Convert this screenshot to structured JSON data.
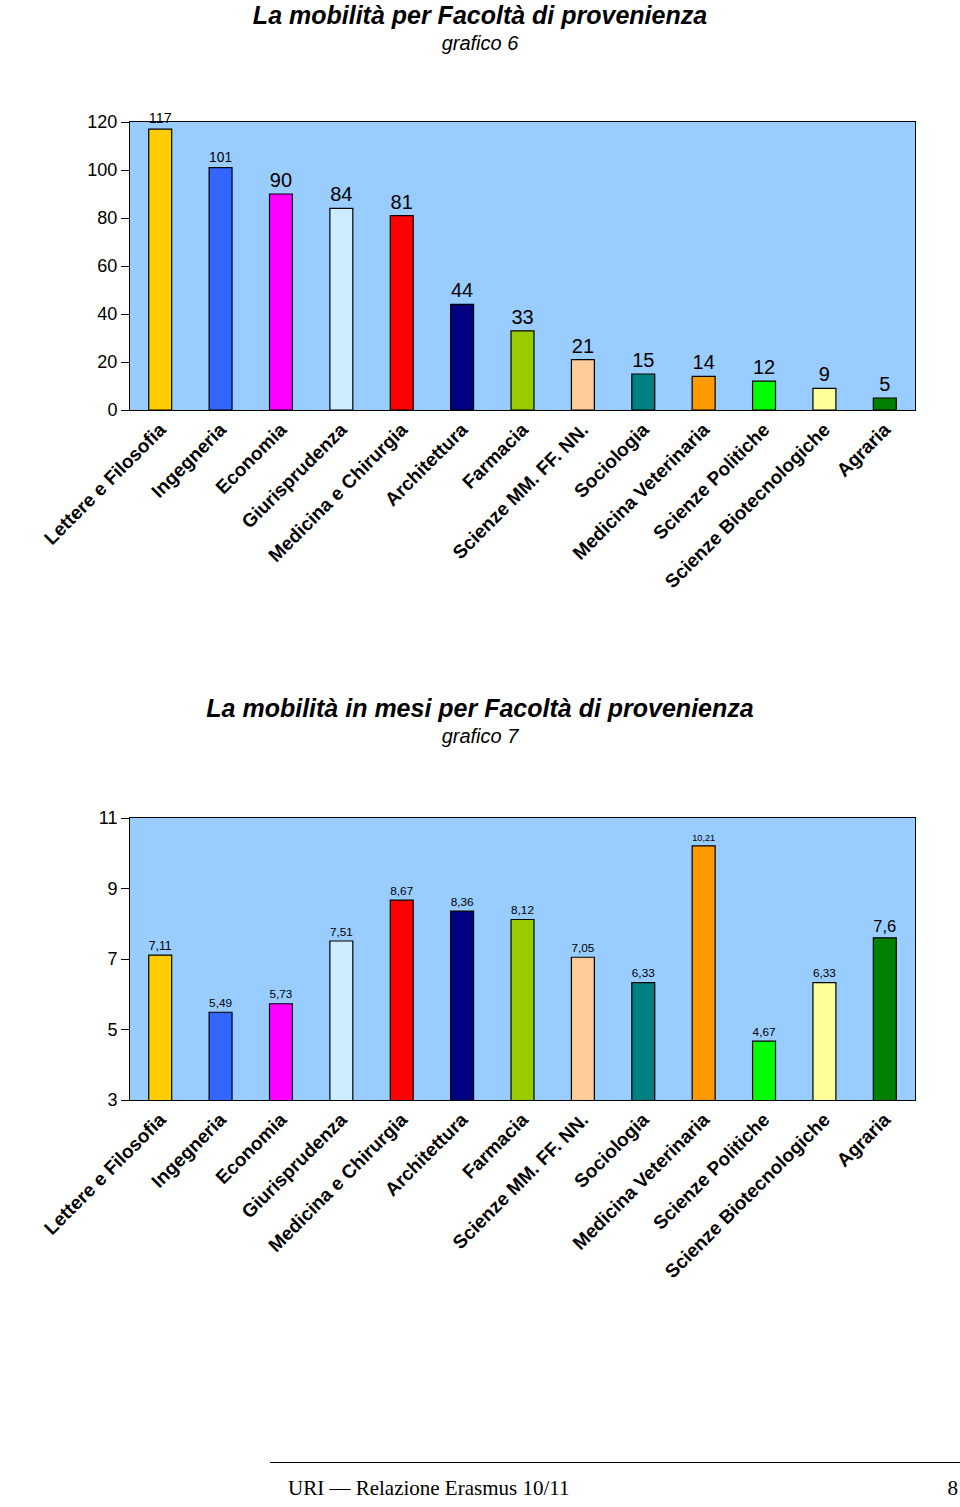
{
  "chart_data": [
    {
      "type": "bar",
      "title": "La mobilità per Facoltà di provenienza",
      "subtitle": "grafico 6",
      "categories": [
        "Lettere e Filosofia",
        "Ingegneria",
        "Economia",
        "Giurisprudenza",
        "Medicina e Chirurgia",
        "Architettura",
        "Farmacia",
        "Scienze MM. FF. NN.",
        "Sociologia",
        "Medicina Veterinaria",
        "Scienze Politiche",
        "Scienze Biotecnologiche",
        "Agraria"
      ],
      "values": [
        117,
        101,
        90,
        84,
        81,
        44,
        33,
        21,
        15,
        14,
        12,
        9,
        5
      ],
      "colors": [
        "#FFCC00",
        "#3366FF",
        "#FF00FF",
        "#CCECFF",
        "#FF0000",
        "#000080",
        "#99CC00",
        "#FFCC99",
        "#008080",
        "#FF9900",
        "#00FF00",
        "#FFFF99",
        "#008000"
      ],
      "ylim": [
        0,
        120
      ],
      "yticks": [
        0,
        20,
        40,
        60,
        80,
        100,
        120
      ],
      "grid": false,
      "data_labels": true
    },
    {
      "type": "bar",
      "title": "La mobilità in mesi per Facoltà di provenienza",
      "subtitle": "grafico 7",
      "categories": [
        "Lettere e Filosofia",
        "Ingegneria",
        "Economia",
        "Giurisprudenza",
        "Medicina e Chirurgia",
        "Architettura",
        "Farmacia",
        "Scienze MM. FF. NN.",
        "Sociologia",
        "Medicina Veterinaria",
        "Scienze Politiche",
        "Scienze Biotecnologiche",
        "Agraria"
      ],
      "values": [
        7.11,
        5.49,
        5.73,
        7.51,
        8.67,
        8.36,
        8.12,
        7.05,
        6.33,
        10.21,
        4.67,
        6.33,
        7.6
      ],
      "value_labels": [
        "7,11",
        "5,49",
        "5,73",
        "7,51",
        "8,67",
        "8,36",
        "8,12",
        "7,05",
        "6,33",
        "10,21",
        "4,67",
        "6,33",
        "7,6"
      ],
      "colors": [
        "#FFCC00",
        "#3366FF",
        "#FF00FF",
        "#CCECFF",
        "#FF0000",
        "#000080",
        "#99CC00",
        "#FFCC99",
        "#008080",
        "#FF9900",
        "#00FF00",
        "#FFFF99",
        "#008000"
      ],
      "ylim": [
        3,
        11
      ],
      "yticks": [
        3,
        5,
        7,
        9,
        11
      ],
      "grid": false,
      "data_labels": true
    }
  ],
  "footer": {
    "text": "URI — Relazione Erasmus 10/11",
    "page": "8"
  }
}
